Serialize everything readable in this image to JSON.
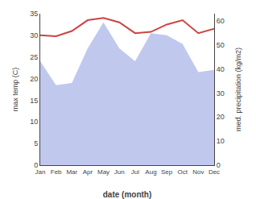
{
  "chart_data": {
    "type": "line",
    "xlabel": "date (month)",
    "ylabel": "max temp (C)",
    "y2label": "med. precipitation (kg/m2)",
    "categories": [
      "Jan",
      "Feb",
      "Mar",
      "Apr",
      "May",
      "Jun",
      "Jul",
      "Aug",
      "Sep",
      "Oct",
      "Nov",
      "Dec"
    ],
    "series": [
      {
        "type": "area",
        "color": "#c0c8ee",
        "values": [
          24.0,
          18.5,
          19.0,
          27.0,
          33.0,
          27.0,
          24.0,
          30.5,
          30.0,
          28.0,
          21.5,
          22.0
        ]
      },
      {
        "type": "line",
        "color": "#cc4444",
        "values": [
          30.0,
          29.8,
          31.0,
          33.5,
          34.0,
          33.0,
          30.5,
          30.8,
          32.5,
          33.5,
          30.5,
          31.5
        ]
      }
    ],
    "ylim": [
      0,
      35
    ],
    "yticks": [
      0,
      5,
      10,
      15,
      20,
      25,
      30,
      35
    ],
    "y2lim": [
      0,
      63
    ],
    "y2ticks": [
      0,
      10,
      20,
      30,
      40,
      50,
      60
    ],
    "grid": false
  }
}
